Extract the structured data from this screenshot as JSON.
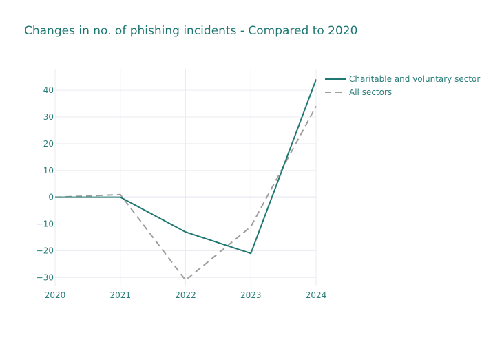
{
  "chart_data": {
    "type": "line",
    "title": "Changes in no. of phishing incidents - Compared to 2020",
    "xlabel": "",
    "ylabel": "",
    "x": [
      2020,
      2021,
      2022,
      2023,
      2024
    ],
    "x_ticks": [
      "2020",
      "2021",
      "2022",
      "2023",
      "2024"
    ],
    "xlim": [
      2020,
      2024
    ],
    "ylim": [
      -33,
      48
    ],
    "y_ticks": [
      "40",
      "30",
      "20",
      "10",
      "0",
      "−10",
      "−20",
      "−30"
    ],
    "y_tick_values": [
      40,
      30,
      20,
      10,
      0,
      -10,
      -20,
      -30
    ],
    "grid": true,
    "legend_position": "top-right",
    "series": [
      {
        "name": "Charitable and voluntary sector",
        "values": [
          0,
          0,
          -13,
          -21,
          44
        ],
        "color": "#1f7772",
        "dash": "solid"
      },
      {
        "name": "All sectors",
        "values": [
          0,
          1,
          -31,
          -11,
          34
        ],
        "color": "#9e9e9e",
        "dash": "dashed"
      }
    ]
  }
}
